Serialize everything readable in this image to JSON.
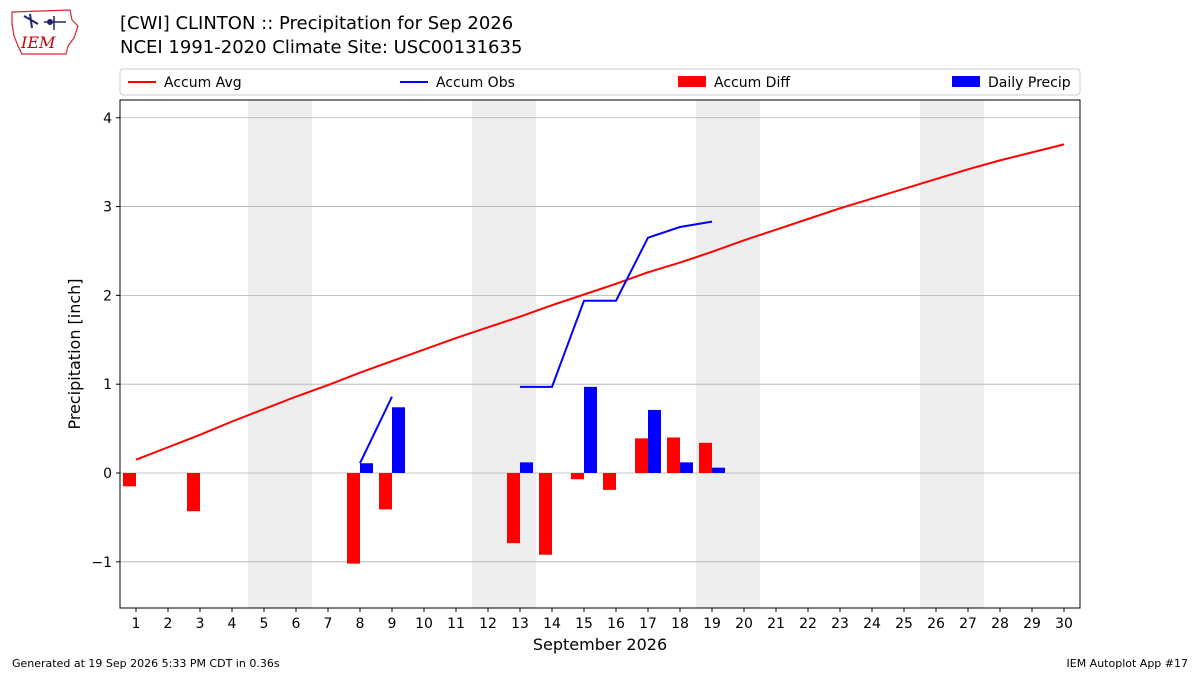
{
  "header": {
    "logo_text": "IEM",
    "title_line1": "[CWI] CLINTON :: Precipitation for Sep 2026",
    "title_line2": "NCEI 1991-2020 Climate Site: USC00131635"
  },
  "footer": {
    "generated": "Generated at 19 Sep 2026 5:33 PM CDT in 0.36s",
    "app": "IEM Autoplot App #17"
  },
  "colors": {
    "avg": "#ff0000",
    "obs": "#0000ff",
    "diff": "#ff0000",
    "daily": "#0000ff",
    "weekend_shade": "#eeeeee",
    "grid": "#b0b0b0"
  },
  "chart_data": {
    "type": "bar",
    "xlabel": "September 2026",
    "ylabel": "Precipitation [inch]",
    "ylim": [
      -1.52,
      4.2
    ],
    "yticks": [
      -1,
      0,
      1,
      2,
      3,
      4
    ],
    "ytick_labels": [
      "−1",
      "0",
      "1",
      "2",
      "3",
      "4"
    ],
    "grid": "horizontal",
    "legend_placement": "top, spanning plot width",
    "legend": [
      "Accum Avg",
      "Accum Obs",
      "Accum Diff",
      "Daily Precip"
    ],
    "days": [
      1,
      2,
      3,
      4,
      5,
      6,
      7,
      8,
      9,
      10,
      11,
      12,
      13,
      14,
      15,
      16,
      17,
      18,
      19,
      20,
      21,
      22,
      23,
      24,
      25,
      26,
      27,
      28,
      29,
      30
    ],
    "weekend_pairs": [
      [
        5,
        6
      ],
      [
        12,
        13
      ],
      [
        19,
        20
      ],
      [
        26,
        27
      ]
    ],
    "series": [
      {
        "name": "Accum Avg",
        "kind": "line",
        "x": [
          1,
          2,
          3,
          4,
          5,
          6,
          7,
          8,
          9,
          10,
          11,
          12,
          13,
          14,
          15,
          16,
          17,
          18,
          19,
          20,
          21,
          22,
          23,
          24,
          25,
          26,
          27,
          28,
          29,
          30
        ],
        "values": [
          0.15,
          0.29,
          0.43,
          0.58,
          0.72,
          0.86,
          0.99,
          1.13,
          1.26,
          1.39,
          1.52,
          1.64,
          1.76,
          1.89,
          2.01,
          2.13,
          2.26,
          2.37,
          2.49,
          2.62,
          2.74,
          2.86,
          2.98,
          3.09,
          3.2,
          3.31,
          3.42,
          3.52,
          3.61,
          3.7
        ]
      },
      {
        "name": "Accum Obs",
        "kind": "line",
        "segments": [
          {
            "x": [
              8,
              9
            ],
            "values": [
              0.11,
              0.86
            ]
          },
          {
            "x": [
              13,
              14,
              15,
              16,
              17,
              18,
              19
            ],
            "values": [
              0.97,
              0.97,
              1.94,
              1.94,
              2.65,
              2.77,
              2.83
            ]
          }
        ]
      },
      {
        "name": "Accum Diff",
        "kind": "bar",
        "x": [
          1,
          3,
          8,
          9,
          13,
          14,
          15,
          16,
          17,
          18,
          19
        ],
        "values": [
          -0.15,
          -0.43,
          -1.02,
          -0.41,
          -0.79,
          -0.92,
          -0.07,
          -0.19,
          0.39,
          0.4,
          0.34
        ]
      },
      {
        "name": "Daily Precip",
        "kind": "bar",
        "x": [
          8,
          9,
          13,
          15,
          17,
          18,
          19
        ],
        "values": [
          0.11,
          0.74,
          0.12,
          0.97,
          0.71,
          0.12,
          0.06
        ]
      }
    ]
  }
}
